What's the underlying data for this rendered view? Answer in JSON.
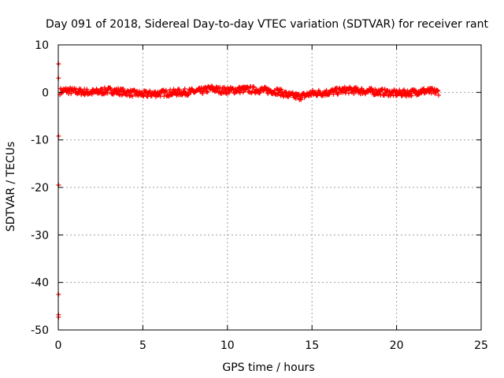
{
  "chart_data": {
    "type": "scatter",
    "title": "Day 091 of 2018, Sidereal Day-to-day VTEC variation (SDTVAR) for receiver rant",
    "xlabel": "GPS time / hours",
    "ylabel": "SDTVAR / TECUs",
    "xlim": [
      0,
      25
    ],
    "ylim": [
      -50,
      10
    ],
    "xticks": [
      0,
      5,
      10,
      15,
      20,
      25
    ],
    "yticks": [
      10,
      0,
      -10,
      -20,
      -30,
      -40,
      -50
    ],
    "grid": true,
    "grid_style": "dotted",
    "series": [
      {
        "name": "SDTVAR",
        "color": "#ff0000",
        "marker": "plus",
        "x_range": [
          0,
          22.5
        ],
        "trend": [
          [
            0.1,
            0.2
          ],
          [
            0.5,
            0.4
          ],
          [
            1.0,
            0.2
          ],
          [
            2.0,
            0.0
          ],
          [
            3.0,
            0.4
          ],
          [
            4.0,
            0.0
          ],
          [
            5.0,
            -0.4
          ],
          [
            6.0,
            -0.2
          ],
          [
            7.0,
            0.0
          ],
          [
            7.8,
            0.1
          ],
          [
            8.5,
            0.3
          ],
          [
            9.0,
            0.8
          ],
          [
            9.5,
            0.5
          ],
          [
            10.0,
            0.4
          ],
          [
            11.0,
            0.6
          ],
          [
            12.0,
            0.5
          ],
          [
            13.0,
            0.2
          ],
          [
            13.6,
            -0.6
          ],
          [
            14.3,
            -0.9
          ],
          [
            15.0,
            -0.2
          ],
          [
            16.0,
            0.0
          ],
          [
            17.0,
            0.5
          ],
          [
            18.0,
            0.3
          ],
          [
            19.0,
            0.1
          ],
          [
            20.0,
            -0.2
          ],
          [
            20.8,
            -0.1
          ],
          [
            21.5,
            0.3
          ],
          [
            22.0,
            0.2
          ],
          [
            22.5,
            0.1
          ]
        ],
        "outliers": [
          [
            0.02,
            6.0
          ],
          [
            0.02,
            3.0
          ],
          [
            0.02,
            -9.2
          ],
          [
            0.02,
            -19.5
          ],
          [
            0.02,
            -42.5
          ],
          [
            0.02,
            -46.8
          ],
          [
            0.02,
            -47.3
          ]
        ]
      }
    ]
  }
}
